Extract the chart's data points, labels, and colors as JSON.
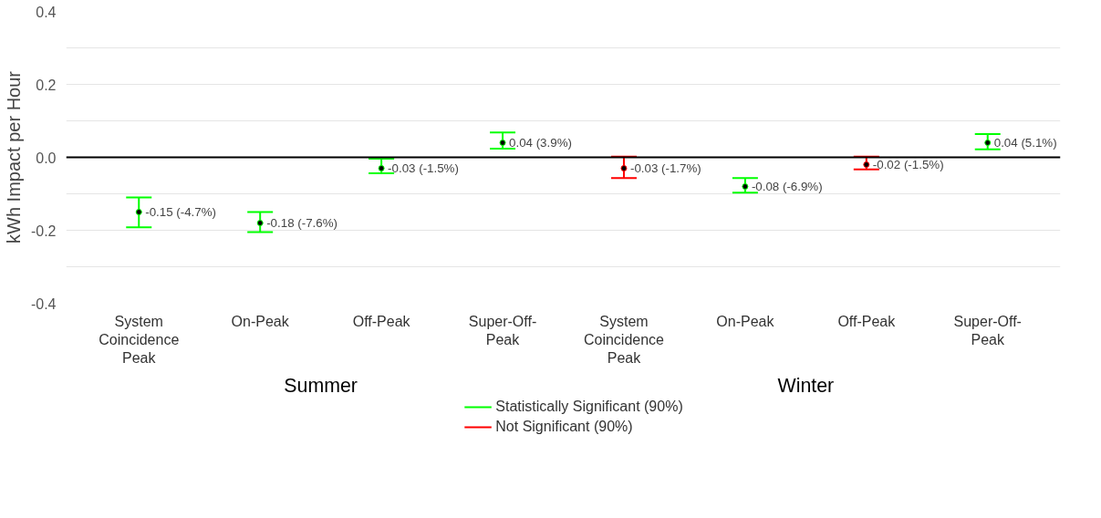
{
  "chart_data": {
    "type": "scatter",
    "ylabel": "kWh Impact per Hour",
    "categories": [
      "System Coincidence Peak",
      "On-Peak",
      "Off-Peak",
      "Super-Off-Peak",
      "System Coincidence Peak",
      "On-Peak",
      "Off-Peak",
      "Super-Off-Peak"
    ],
    "annotations": [
      "Summer",
      "Winter"
    ],
    "series": [
      {
        "name": "Statistically Significant (90%)",
        "color": "#00ff00",
        "values": [
          -0.15,
          -0.18,
          -0.03,
          0.04,
          null,
          -0.08,
          null,
          0.04
        ],
        "errors": [
          [
            -0.192,
            -0.11
          ],
          [
            -0.205,
            -0.15
          ],
          [
            -0.044,
            -0.004
          ],
          [
            0.024,
            0.068
          ],
          null,
          [
            -0.097,
            -0.057
          ],
          null,
          [
            0.022,
            0.064
          ]
        ],
        "value_labels": [
          "-0.15 (-4.7%)",
          "-0.18 (-7.6%)",
          "-0.03 (-1.5%)",
          "0.04 (3.9%)",
          null,
          "-0.08 (-6.9%)",
          null,
          "0.04 (5.1%)"
        ]
      },
      {
        "name": "Not Significant (90%)",
        "color": "#ff0000",
        "values": [
          null,
          null,
          null,
          null,
          -0.03,
          null,
          -0.02,
          null
        ],
        "errors": [
          null,
          null,
          null,
          null,
          [
            -0.057,
            0.002
          ],
          null,
          [
            -0.033,
            0.002
          ],
          null
        ],
        "value_labels": [
          null,
          null,
          null,
          null,
          "-0.03 (-1.7%)",
          null,
          "-0.02 (-1.5%)",
          null
        ]
      }
    ],
    "ylim": [
      -0.4,
      0.4
    ],
    "yticks": [
      -0.4,
      {
        "value": -0.3,
        "label": null
      },
      -0.2,
      {
        "value": -0.1,
        "label": null
      },
      {
        "value": 0,
        "label": "0.0"
      },
      {
        "value": 0.1,
        "label": null
      },
      0.2,
      {
        "value": 0.3,
        "label": null
      },
      0.4
    ],
    "ref_lines": [
      {
        "axis": "y",
        "value": 0,
        "color": "#000000"
      }
    ],
    "grid": "y",
    "legend": "bottom",
    "marker": "circle"
  }
}
